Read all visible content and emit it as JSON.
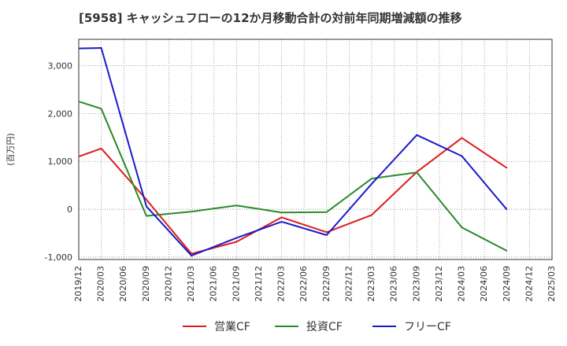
{
  "title": "[5958]  キャッシュフローの12か月移動合計の対前年同期増減額の推移",
  "chart_data": {
    "type": "line",
    "title": "[5958]  キャッシュフローの12か月移動合計の対前年同期増減額の推移",
    "ylabel": "(百万円)",
    "xlabel": "",
    "x": [
      "2019/12",
      "2020/03",
      "2020/06",
      "2020/09",
      "2020/12",
      "2021/03",
      "2021/06",
      "2021/09",
      "2021/12",
      "2022/03",
      "2022/06",
      "2022/09",
      "2022/12",
      "2023/03",
      "2023/06",
      "2023/09",
      "2023/12",
      "2024/03",
      "2024/06",
      "2024/09",
      "2024/12",
      "2025/03"
    ],
    "ylim": [
      -1050,
      3550
    ],
    "yticks": [
      -1000,
      0,
      1000,
      2000,
      3000
    ],
    "ytick_labels": [
      "-1,000",
      "0",
      "1,000",
      "2,000",
      "3,000"
    ],
    "grid": true,
    "legend_position": "bottom",
    "series": [
      {
        "name": "営業CF",
        "color": "#dd1c1c",
        "values": [
          1100,
          1270,
          null,
          200,
          null,
          -930,
          null,
          -680,
          null,
          -170,
          null,
          -480,
          null,
          -120,
          null,
          780,
          null,
          1490,
          null,
          860,
          null,
          null
        ]
      },
      {
        "name": "投資CF",
        "color": "#2a8a2a",
        "values": [
          2250,
          2100,
          null,
          -140,
          null,
          -50,
          null,
          80,
          null,
          -70,
          null,
          -60,
          null,
          640,
          null,
          770,
          null,
          -380,
          null,
          -870,
          null,
          null
        ]
      },
      {
        "name": "フリーCF",
        "color": "#1a1acc",
        "values": [
          3360,
          3370,
          null,
          60,
          null,
          -970,
          null,
          -600,
          null,
          -260,
          null,
          -540,
          null,
          530,
          null,
          1550,
          null,
          1110,
          null,
          -10,
          null,
          null
        ]
      }
    ]
  }
}
